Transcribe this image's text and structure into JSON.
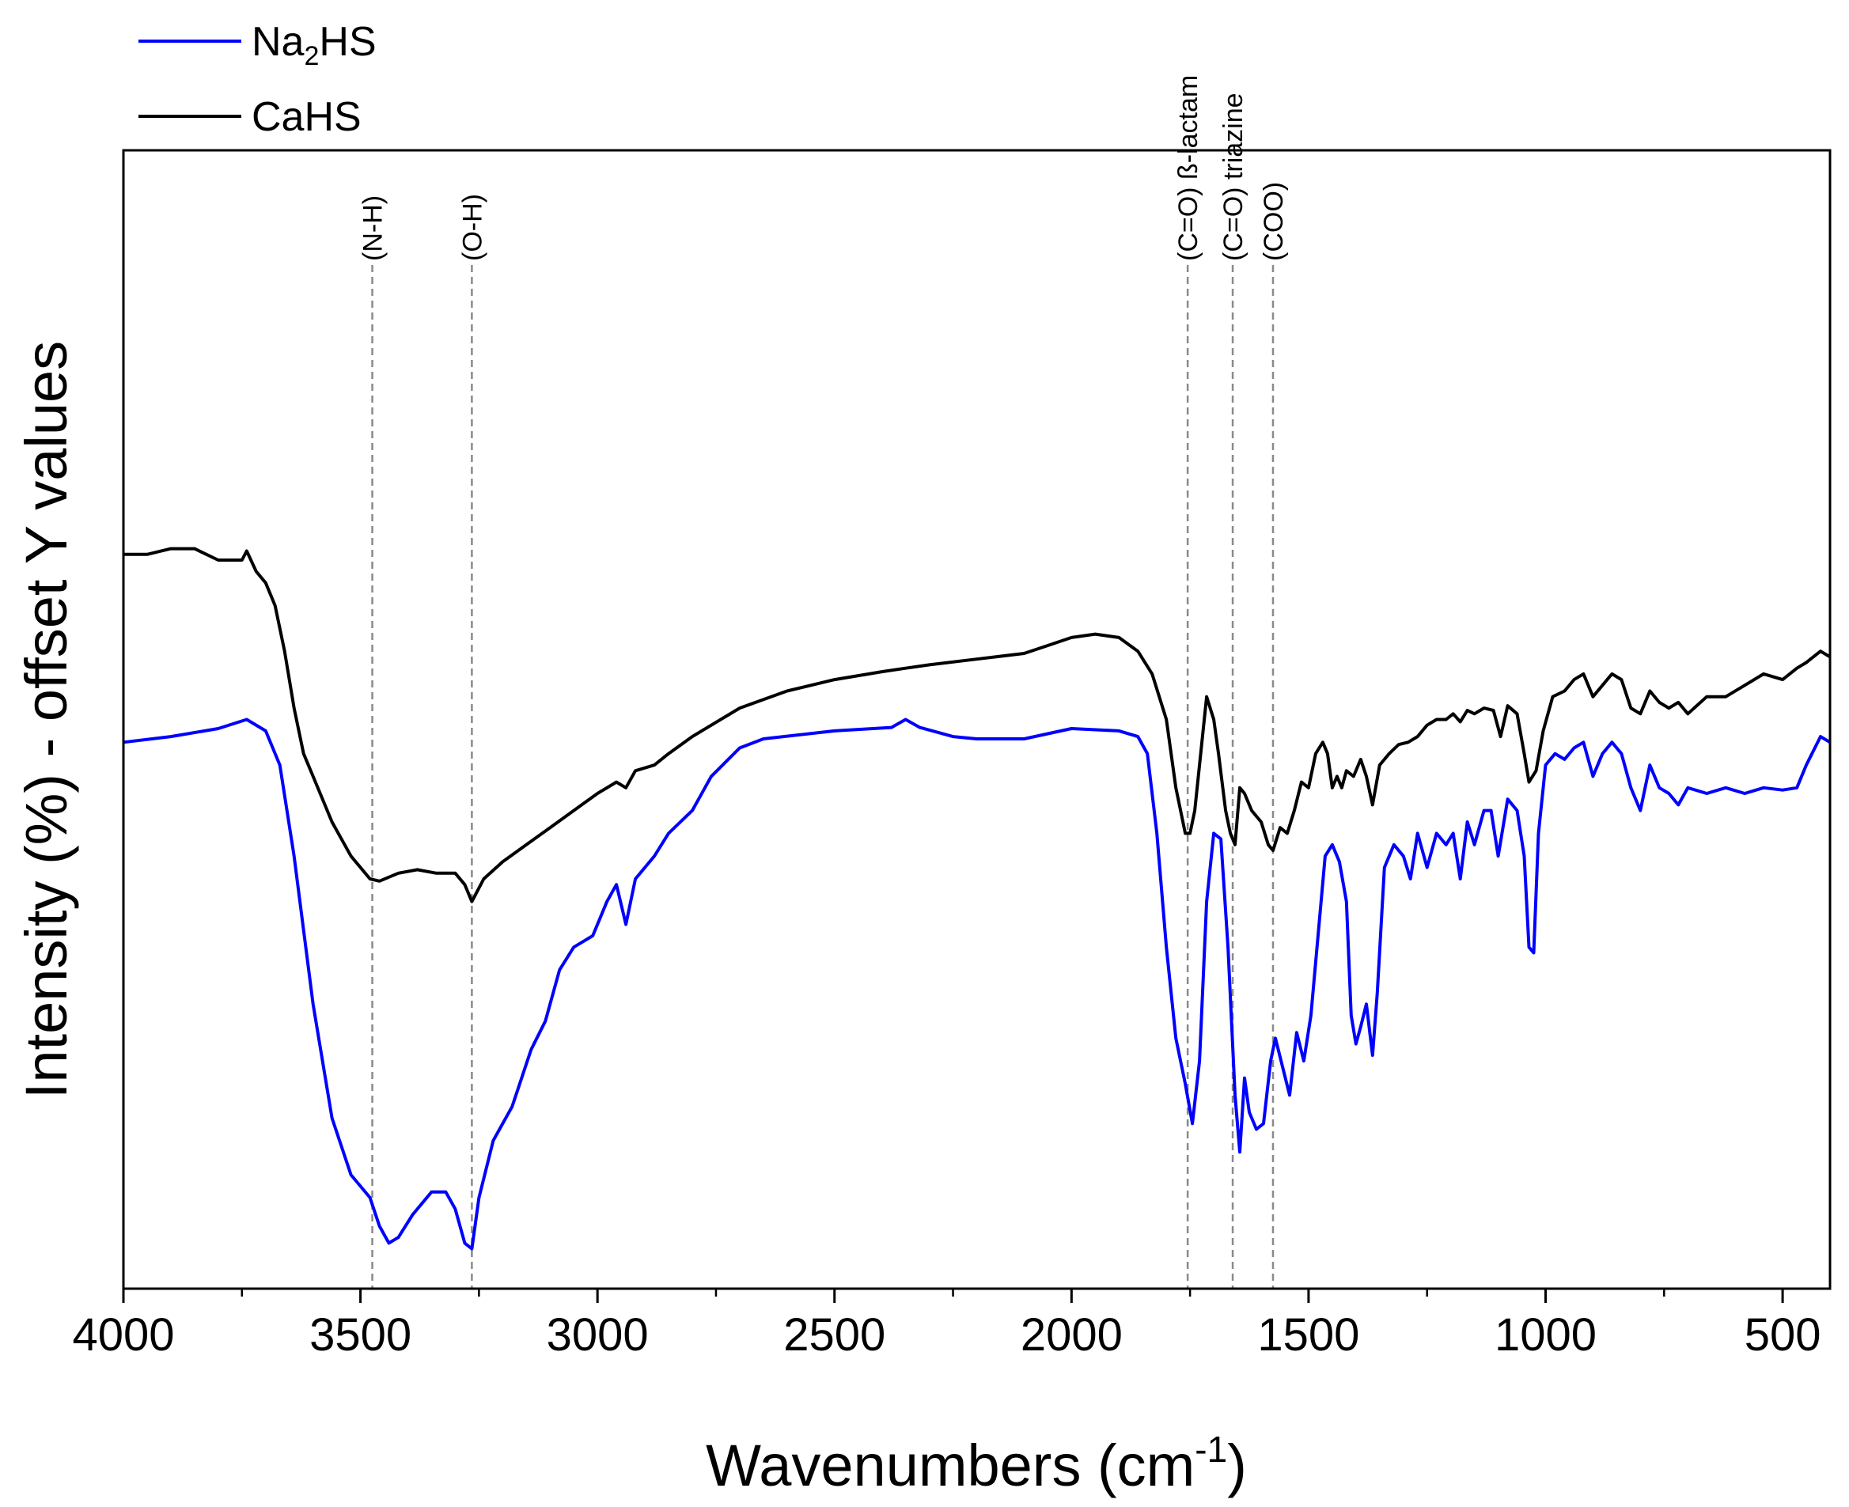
{
  "chart_data": {
    "type": "line",
    "title": "",
    "xlabel": "Wavenumbers (cm",
    "xlabel_sup": "-1",
    "xlabel_close": ")",
    "ylabel": "Intensity (%) - offset Y values",
    "xlim": [
      4000,
      400
    ],
    "x_reversed": true,
    "ylim": [
      0,
      1
    ],
    "xticks": [
      4000,
      3500,
      3000,
      2500,
      2000,
      1500,
      1000,
      500
    ],
    "xtick_labels": [
      "4000",
      "3500",
      "3000",
      "2500",
      "2000",
      "1500",
      "1000",
      "500"
    ],
    "y_ticks_shown": false,
    "grid": false,
    "legend": {
      "position": "top-left, outside plot",
      "entries": [
        {
          "label_main": "Na",
          "label_sub": "2",
          "label_rest": "HS",
          "color": "#0000ff"
        },
        {
          "label_main": "CaHS",
          "label_sub": "",
          "label_rest": "",
          "color": "#000000"
        }
      ]
    },
    "band_markers": [
      {
        "x": 3475,
        "label": "(N-H)"
      },
      {
        "x": 3265,
        "label": "(O-H)"
      },
      {
        "x": 1755,
        "label": "(C=O) ß-lactam"
      },
      {
        "x": 1660,
        "label": "(C=O) triazine"
      },
      {
        "x": 1575,
        "label": "(COO)"
      }
    ],
    "series": [
      {
        "name": "Na2HS",
        "color": "#0000ff",
        "points": [
          [
            4000,
            0.48
          ],
          [
            3900,
            0.485
          ],
          [
            3800,
            0.492
          ],
          [
            3740,
            0.5
          ],
          [
            3700,
            0.49
          ],
          [
            3670,
            0.46
          ],
          [
            3640,
            0.38
          ],
          [
            3600,
            0.25
          ],
          [
            3560,
            0.15
          ],
          [
            3520,
            0.1
          ],
          [
            3480,
            0.08
          ],
          [
            3460,
            0.055
          ],
          [
            3440,
            0.04
          ],
          [
            3420,
            0.045
          ],
          [
            3390,
            0.065
          ],
          [
            3350,
            0.085
          ],
          [
            3320,
            0.085
          ],
          [
            3300,
            0.07
          ],
          [
            3280,
            0.04
          ],
          [
            3265,
            0.035
          ],
          [
            3250,
            0.08
          ],
          [
            3220,
            0.13
          ],
          [
            3180,
            0.16
          ],
          [
            3140,
            0.21
          ],
          [
            3110,
            0.235
          ],
          [
            3080,
            0.28
          ],
          [
            3050,
            0.3
          ],
          [
            3010,
            0.31
          ],
          [
            2980,
            0.34
          ],
          [
            2960,
            0.355
          ],
          [
            2940,
            0.32
          ],
          [
            2920,
            0.36
          ],
          [
            2880,
            0.38
          ],
          [
            2850,
            0.4
          ],
          [
            2800,
            0.42
          ],
          [
            2760,
            0.45
          ],
          [
            2700,
            0.475
          ],
          [
            2650,
            0.483
          ],
          [
            2500,
            0.49
          ],
          [
            2380,
            0.493
          ],
          [
            2350,
            0.5
          ],
          [
            2320,
            0.493
          ],
          [
            2250,
            0.485
          ],
          [
            2200,
            0.483
          ],
          [
            2100,
            0.483
          ],
          [
            2000,
            0.492
          ],
          [
            1900,
            0.49
          ],
          [
            1860,
            0.485
          ],
          [
            1840,
            0.47
          ],
          [
            1820,
            0.4
          ],
          [
            1800,
            0.3
          ],
          [
            1780,
            0.22
          ],
          [
            1760,
            0.18
          ],
          [
            1745,
            0.145
          ],
          [
            1730,
            0.2
          ],
          [
            1715,
            0.34
          ],
          [
            1700,
            0.4
          ],
          [
            1685,
            0.395
          ],
          [
            1670,
            0.3
          ],
          [
            1655,
            0.17
          ],
          [
            1645,
            0.12
          ],
          [
            1635,
            0.185
          ],
          [
            1625,
            0.155
          ],
          [
            1610,
            0.14
          ],
          [
            1595,
            0.145
          ],
          [
            1580,
            0.2
          ],
          [
            1570,
            0.22
          ],
          [
            1555,
            0.195
          ],
          [
            1540,
            0.17
          ],
          [
            1525,
            0.225
          ],
          [
            1510,
            0.2
          ],
          [
            1495,
            0.24
          ],
          [
            1480,
            0.31
          ],
          [
            1465,
            0.38
          ],
          [
            1450,
            0.39
          ],
          [
            1435,
            0.375
          ],
          [
            1420,
            0.34
          ],
          [
            1410,
            0.24
          ],
          [
            1400,
            0.215
          ],
          [
            1390,
            0.23
          ],
          [
            1378,
            0.25
          ],
          [
            1365,
            0.205
          ],
          [
            1355,
            0.26
          ],
          [
            1340,
            0.37
          ],
          [
            1320,
            0.39
          ],
          [
            1300,
            0.38
          ],
          [
            1285,
            0.36
          ],
          [
            1270,
            0.4
          ],
          [
            1250,
            0.37
          ],
          [
            1230,
            0.4
          ],
          [
            1210,
            0.39
          ],
          [
            1195,
            0.4
          ],
          [
            1180,
            0.36
          ],
          [
            1165,
            0.41
          ],
          [
            1150,
            0.39
          ],
          [
            1130,
            0.42
          ],
          [
            1115,
            0.42
          ],
          [
            1100,
            0.38
          ],
          [
            1080,
            0.43
          ],
          [
            1060,
            0.42
          ],
          [
            1045,
            0.38
          ],
          [
            1035,
            0.3
          ],
          [
            1025,
            0.295
          ],
          [
            1015,
            0.4
          ],
          [
            1000,
            0.46
          ],
          [
            980,
            0.47
          ],
          [
            960,
            0.465
          ],
          [
            940,
            0.475
          ],
          [
            920,
            0.48
          ],
          [
            900,
            0.45
          ],
          [
            880,
            0.47
          ],
          [
            860,
            0.48
          ],
          [
            840,
            0.47
          ],
          [
            820,
            0.44
          ],
          [
            800,
            0.42
          ],
          [
            780,
            0.46
          ],
          [
            760,
            0.44
          ],
          [
            740,
            0.435
          ],
          [
            720,
            0.425
          ],
          [
            700,
            0.44
          ],
          [
            660,
            0.435
          ],
          [
            620,
            0.44
          ],
          [
            580,
            0.435
          ],
          [
            540,
            0.44
          ],
          [
            500,
            0.438
          ],
          [
            470,
            0.44
          ],
          [
            450,
            0.46
          ],
          [
            420,
            0.485
          ],
          [
            400,
            0.48
          ]
        ]
      },
      {
        "name": "CaHS",
        "color": "#000000",
        "points": [
          [
            4000,
            0.645
          ],
          [
            3950,
            0.645
          ],
          [
            3900,
            0.65
          ],
          [
            3850,
            0.65
          ],
          [
            3800,
            0.64
          ],
          [
            3750,
            0.64
          ],
          [
            3740,
            0.648
          ],
          [
            3720,
            0.63
          ],
          [
            3700,
            0.62
          ],
          [
            3680,
            0.6
          ],
          [
            3660,
            0.56
          ],
          [
            3640,
            0.51
          ],
          [
            3620,
            0.47
          ],
          [
            3600,
            0.45
          ],
          [
            3560,
            0.41
          ],
          [
            3520,
            0.38
          ],
          [
            3480,
            0.36
          ],
          [
            3460,
            0.358
          ],
          [
            3420,
            0.365
          ],
          [
            3380,
            0.368
          ],
          [
            3340,
            0.365
          ],
          [
            3300,
            0.365
          ],
          [
            3280,
            0.355
          ],
          [
            3265,
            0.34
          ],
          [
            3240,
            0.36
          ],
          [
            3200,
            0.375
          ],
          [
            3150,
            0.39
          ],
          [
            3100,
            0.405
          ],
          [
            3050,
            0.42
          ],
          [
            3000,
            0.435
          ],
          [
            2960,
            0.445
          ],
          [
            2940,
            0.44
          ],
          [
            2920,
            0.455
          ],
          [
            2880,
            0.46
          ],
          [
            2850,
            0.47
          ],
          [
            2800,
            0.485
          ],
          [
            2700,
            0.51
          ],
          [
            2600,
            0.525
          ],
          [
            2500,
            0.535
          ],
          [
            2400,
            0.542
          ],
          [
            2350,
            0.545
          ],
          [
            2300,
            0.548
          ],
          [
            2200,
            0.553
          ],
          [
            2100,
            0.558
          ],
          [
            2050,
            0.565
          ],
          [
            2000,
            0.572
          ],
          [
            1950,
            0.575
          ],
          [
            1900,
            0.572
          ],
          [
            1860,
            0.56
          ],
          [
            1830,
            0.54
          ],
          [
            1800,
            0.5
          ],
          [
            1780,
            0.44
          ],
          [
            1760,
            0.4
          ],
          [
            1750,
            0.4
          ],
          [
            1740,
            0.42
          ],
          [
            1725,
            0.48
          ],
          [
            1715,
            0.52
          ],
          [
            1700,
            0.5
          ],
          [
            1690,
            0.47
          ],
          [
            1675,
            0.42
          ],
          [
            1665,
            0.4
          ],
          [
            1655,
            0.39
          ],
          [
            1645,
            0.44
          ],
          [
            1635,
            0.435
          ],
          [
            1620,
            0.42
          ],
          [
            1600,
            0.41
          ],
          [
            1585,
            0.39
          ],
          [
            1575,
            0.385
          ],
          [
            1560,
            0.405
          ],
          [
            1545,
            0.4
          ],
          [
            1530,
            0.42
          ],
          [
            1515,
            0.445
          ],
          [
            1500,
            0.44
          ],
          [
            1485,
            0.47
          ],
          [
            1470,
            0.48
          ],
          [
            1460,
            0.47
          ],
          [
            1450,
            0.44
          ],
          [
            1440,
            0.45
          ],
          [
            1430,
            0.44
          ],
          [
            1420,
            0.455
          ],
          [
            1405,
            0.45
          ],
          [
            1390,
            0.465
          ],
          [
            1378,
            0.45
          ],
          [
            1365,
            0.425
          ],
          [
            1350,
            0.46
          ],
          [
            1330,
            0.47
          ],
          [
            1310,
            0.478
          ],
          [
            1290,
            0.48
          ],
          [
            1270,
            0.485
          ],
          [
            1250,
            0.495
          ],
          [
            1230,
            0.5
          ],
          [
            1210,
            0.5
          ],
          [
            1195,
            0.505
          ],
          [
            1180,
            0.498
          ],
          [
            1165,
            0.508
          ],
          [
            1150,
            0.505
          ],
          [
            1130,
            0.51
          ],
          [
            1110,
            0.508
          ],
          [
            1095,
            0.485
          ],
          [
            1080,
            0.512
          ],
          [
            1060,
            0.505
          ],
          [
            1045,
            0.47
          ],
          [
            1035,
            0.445
          ],
          [
            1020,
            0.455
          ],
          [
            1005,
            0.49
          ],
          [
            985,
            0.52
          ],
          [
            960,
            0.525
          ],
          [
            940,
            0.535
          ],
          [
            920,
            0.54
          ],
          [
            900,
            0.52
          ],
          [
            880,
            0.53
          ],
          [
            860,
            0.54
          ],
          [
            840,
            0.535
          ],
          [
            820,
            0.51
          ],
          [
            800,
            0.505
          ],
          [
            780,
            0.525
          ],
          [
            760,
            0.515
          ],
          [
            740,
            0.51
          ],
          [
            720,
            0.515
          ],
          [
            700,
            0.505
          ],
          [
            660,
            0.52
          ],
          [
            620,
            0.52
          ],
          [
            580,
            0.53
          ],
          [
            540,
            0.54
          ],
          [
            500,
            0.535
          ],
          [
            470,
            0.545
          ],
          [
            450,
            0.55
          ],
          [
            420,
            0.56
          ],
          [
            400,
            0.555
          ]
        ]
      }
    ]
  }
}
